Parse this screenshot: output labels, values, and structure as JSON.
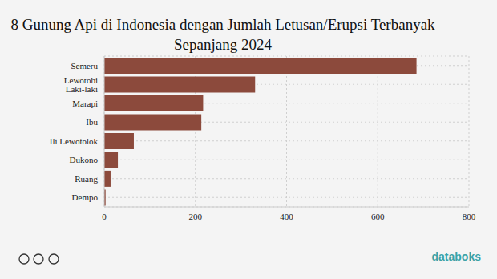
{
  "chart_data": {
    "type": "bar",
    "title": "8 Gunung Api di Indonesia dengan Jumlah Letusan/Erupsi Terbanyak Sepanjang 2024",
    "orientation": "horizontal",
    "categories": [
      "Semeru",
      "Lewotobi Laki-laki",
      "Marapi",
      "Ibu",
      "Ili Lewotolok",
      "Dukono",
      "Ruang",
      "Dempo"
    ],
    "values": [
      685,
      331,
      217,
      213,
      65,
      30,
      14,
      3
    ],
    "color": "#8c4a3c",
    "xlim": [
      0,
      800
    ],
    "xticks": [
      0,
      200,
      400,
      600,
      800
    ],
    "grid": true,
    "annotations": [
      "databoks"
    ]
  }
}
